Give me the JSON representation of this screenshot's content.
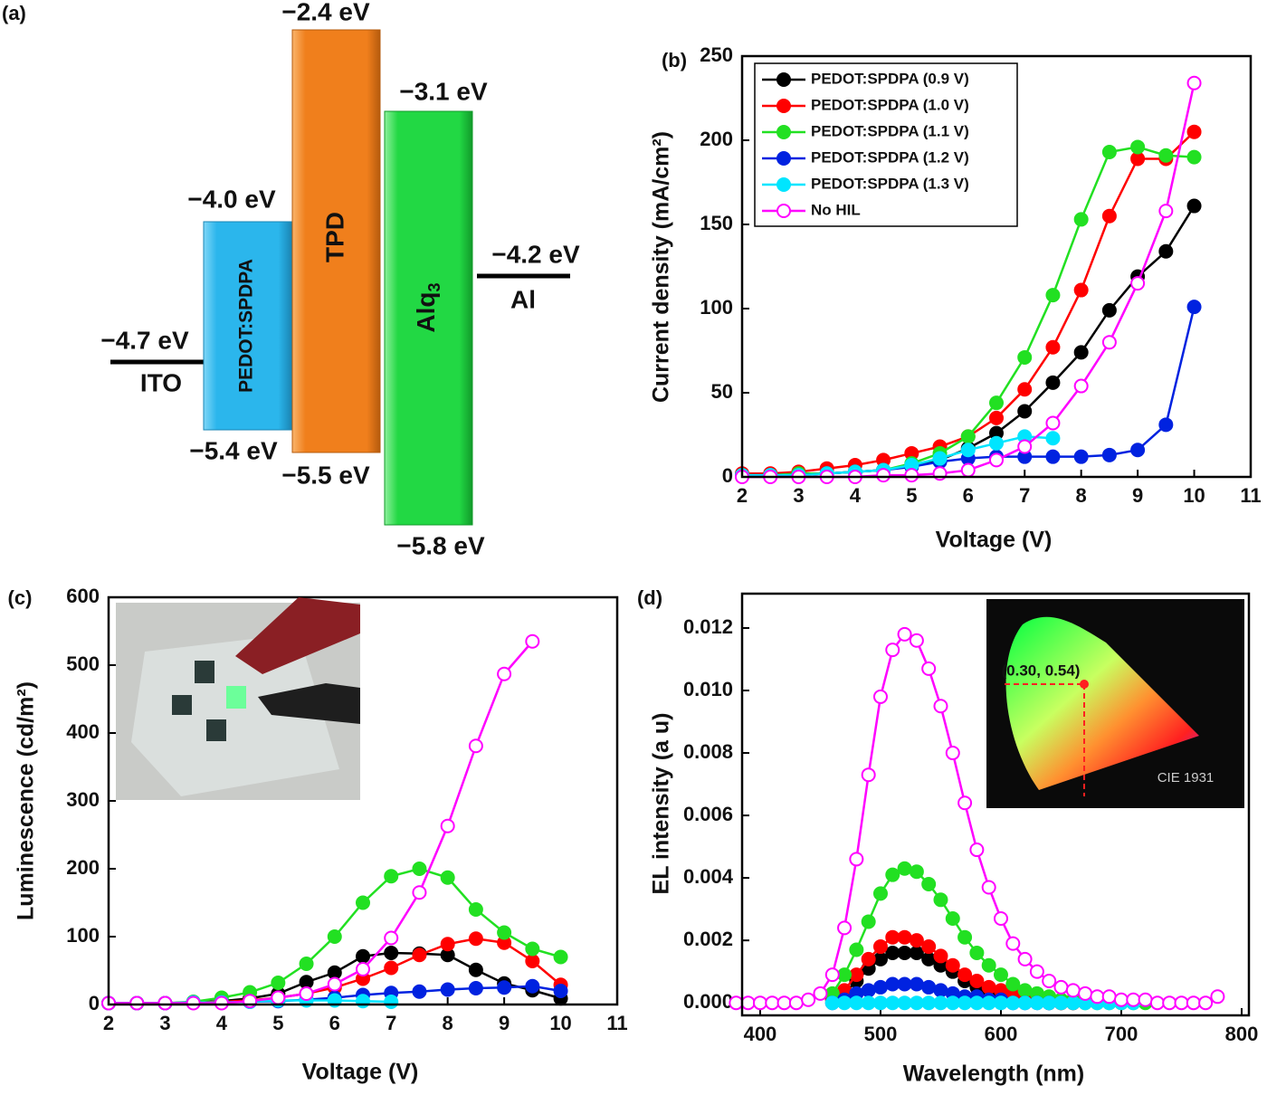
{
  "diagram": {
    "panel_label": "(a)",
    "ito": {
      "name": "ITO",
      "level": "−4.7 eV"
    },
    "pedot": {
      "name": "PEDOT:SPDPA",
      "top": "−4.0 eV",
      "bottom": "−5.4 eV"
    },
    "tpd": {
      "name": "TPD",
      "top": "−2.4 eV",
      "bottom": "−5.5 eV"
    },
    "alq": {
      "name": "Alq",
      "sub": "3",
      "top": "−3.1 eV",
      "bottom": "−5.8 eV"
    },
    "al": {
      "name": "Al",
      "level": "−4.2 eV"
    }
  },
  "chart_data": [
    {
      "type": "line",
      "panel_label": "(b)",
      "x_label": "Voltage (V)",
      "y_label": "Current density (mA/cm²)",
      "xlim": [
        2,
        11
      ],
      "ylim": [
        0,
        250
      ],
      "xticks": [
        2,
        3,
        4,
        5,
        6,
        7,
        8,
        9,
        10,
        11
      ],
      "yticks": [
        0,
        50,
        100,
        150,
        200,
        250
      ],
      "legend": "upper left",
      "x": [
        2,
        2.5,
        3,
        3.5,
        4,
        4.5,
        5,
        5.5,
        6,
        6.5,
        7,
        7.5,
        8,
        8.5,
        9,
        9.5,
        10
      ],
      "series": [
        {
          "name": "PEDOT:SPDPA (0.9 V)",
          "color": "#000000",
          "marker": "filled",
          "values": [
            1,
            1,
            1,
            2,
            3,
            4,
            7,
            10,
            17,
            26,
            39,
            56,
            74,
            99,
            119,
            134,
            161
          ]
        },
        {
          "name": "PEDOT:SPDPA (1.0 V)",
          "color": "#ff0000",
          "marker": "filled",
          "values": [
            2,
            2,
            3,
            5,
            7,
            10,
            14,
            18,
            24,
            35,
            52,
            77,
            111,
            155,
            189,
            189,
            205
          ]
        },
        {
          "name": "PEDOT:SPDPA (1.1 V)",
          "color": "#22e022",
          "marker": "filled",
          "values": [
            1,
            1,
            2,
            2,
            3,
            4,
            8,
            14,
            24,
            44,
            71,
            108,
            153,
            193,
            196,
            191,
            190
          ]
        },
        {
          "name": "PEDOT:SPDPA (1.2 V)",
          "color": "#0022e0",
          "marker": "filled",
          "values": [
            1,
            1,
            1,
            2,
            3,
            4,
            6,
            9,
            11,
            12,
            12,
            12,
            12,
            13,
            16,
            31,
            101
          ]
        },
        {
          "name": "PEDOT:SPDPA (1.3 V)",
          "color": "#00e5ff",
          "marker": "filled",
          "values": [
            1,
            1,
            1,
            2,
            3,
            4,
            7,
            11,
            16,
            20,
            24,
            23,
            null,
            null,
            null,
            null,
            null
          ]
        },
        {
          "name": "No HIL",
          "color": "#ff00ff",
          "marker": "open",
          "values": [
            0,
            0,
            0,
            0,
            0,
            1,
            1,
            2,
            4,
            10,
            18,
            32,
            54,
            80,
            115,
            158,
            234
          ]
        }
      ]
    },
    {
      "type": "line",
      "panel_label": "(c)",
      "x_label": "Voltage (V)",
      "y_label": "Luminescence (cd/m²)",
      "xlim": [
        2,
        11
      ],
      "ylim": [
        0,
        600
      ],
      "xticks": [
        2,
        3,
        4,
        5,
        6,
        7,
        8,
        9,
        10,
        11
      ],
      "yticks": [
        0,
        100,
        200,
        300,
        400,
        500,
        600
      ],
      "x": [
        2,
        2.5,
        3,
        3.5,
        4,
        4.5,
        5,
        5.5,
        6,
        6.5,
        7,
        7.5,
        8,
        8.5,
        9,
        9.5,
        10
      ],
      "series": [
        {
          "color": "#000000",
          "marker": "filled",
          "values": [
            2,
            2,
            2,
            3,
            5,
            9,
            16,
            33,
            47,
            71,
            76,
            75,
            73,
            51,
            31,
            21,
            9
          ]
        },
        {
          "color": "#ff0000",
          "marker": "filled",
          "values": [
            2,
            2,
            2,
            3,
            4,
            6,
            10,
            16,
            25,
            38,
            54,
            73,
            89,
            97,
            91,
            64,
            29
          ]
        },
        {
          "color": "#22e022",
          "marker": "filled",
          "values": [
            2,
            2,
            2,
            4,
            10,
            18,
            32,
            60,
            100,
            150,
            189,
            200,
            187,
            140,
            106,
            82,
            70
          ]
        },
        {
          "color": "#0022e0",
          "marker": "filled",
          "values": [
            2,
            2,
            2,
            3,
            3,
            4,
            5,
            7,
            10,
            14,
            17,
            19,
            22,
            24,
            25,
            27,
            20
          ]
        },
        {
          "color": "#00e5ff",
          "marker": "filled",
          "values": [
            2,
            2,
            2,
            3,
            3,
            4,
            6,
            6,
            6,
            5,
            4,
            null,
            null,
            null,
            null,
            null,
            null
          ]
        },
        {
          "color": "#ff00ff",
          "marker": "open",
          "values": [
            2,
            2,
            2,
            2,
            2,
            5,
            10,
            16,
            30,
            52,
            98,
            165,
            263,
            381,
            487,
            535,
            null
          ]
        }
      ]
    },
    {
      "type": "line",
      "panel_label": "(d)",
      "x_label": "Wavelength (nm)",
      "y_label": "EL intensity (a u)",
      "annotations": [
        "(0.30, 0.54)",
        "CIE 1931"
      ],
      "xlim": [
        385,
        806
      ],
      "ylim": [
        -0.0004,
        0.0131
      ],
      "xticks": [
        400,
        500,
        600,
        700,
        800
      ],
      "yticks": [
        {
          "value": 0,
          "label": "0.000"
        },
        {
          "value": 0.002,
          "label": "0.002"
        },
        {
          "value": 0.004,
          "label": "0.004"
        },
        {
          "value": 0.006,
          "label": "0.006"
        },
        {
          "value": 0.008,
          "label": "0.008"
        },
        {
          "value": 0.01,
          "label": "0.010"
        },
        {
          "value": 0.012,
          "label": "0.012"
        }
      ],
      "x": [
        380,
        390,
        400,
        410,
        420,
        430,
        440,
        450,
        460,
        470,
        480,
        490,
        500,
        510,
        520,
        530,
        540,
        550,
        560,
        570,
        580,
        590,
        600,
        610,
        620,
        630,
        640,
        650,
        660,
        670,
        680,
        690,
        700,
        710,
        720,
        730,
        740,
        750,
        760,
        770,
        780
      ],
      "series": [
        {
          "color": "#000000",
          "marker": "filled",
          "values": [
            null,
            null,
            null,
            null,
            null,
            null,
            null,
            null,
            0.0001,
            0.0003,
            0.0007,
            0.0011,
            0.0014,
            0.0016,
            0.0016,
            0.0016,
            0.0014,
            0.0012,
            0.001,
            0.0007,
            0.0005,
            0.0004,
            0.0003,
            0.0002,
            0.0001,
            0.0001,
            0,
            0,
            0,
            null,
            null,
            null,
            null,
            null,
            null,
            null,
            null,
            null,
            null,
            null,
            null
          ]
        },
        {
          "color": "#ff0000",
          "marker": "filled",
          "values": [
            null,
            null,
            null,
            null,
            null,
            null,
            null,
            null,
            0.0001,
            0.0004,
            0.0009,
            0.0014,
            0.0018,
            0.0021,
            0.0021,
            0.002,
            0.0018,
            0.0015,
            0.0012,
            0.0009,
            0.0007,
            0.0005,
            0.0004,
            0.0003,
            0.0002,
            0.0001,
            0.0001,
            0,
            0,
            null,
            null,
            null,
            null,
            null,
            null,
            null,
            null,
            null,
            null,
            null,
            null
          ]
        },
        {
          "color": "#22e022",
          "marker": "filled",
          "values": [
            null,
            null,
            null,
            null,
            null,
            null,
            null,
            null,
            0.0003,
            0.0009,
            0.0017,
            0.0026,
            0.0035,
            0.0041,
            0.0043,
            0.0042,
            0.0038,
            0.0033,
            0.0027,
            0.0021,
            0.0016,
            0.0012,
            0.0009,
            0.0006,
            0.0004,
            0.0003,
            0.0002,
            0.0001,
            0.0001,
            0,
            0,
            0,
            0,
            0,
            0,
            null,
            null,
            null,
            null,
            null,
            null
          ]
        },
        {
          "color": "#0022e0",
          "marker": "filled",
          "values": [
            null,
            null,
            null,
            null,
            null,
            null,
            null,
            null,
            0,
            0.0001,
            0.0003,
            0.0004,
            0.0005,
            0.0006,
            0.0006,
            0.0006,
            0.0005,
            0.0004,
            0.0003,
            0.0002,
            0.0002,
            0.0001,
            0.0001,
            0,
            0,
            0,
            0,
            null,
            null,
            null,
            null,
            null,
            null,
            null,
            null,
            null,
            null,
            null,
            null,
            null,
            null
          ]
        },
        {
          "color": "#00e5ff",
          "marker": "filled",
          "values": [
            null,
            null,
            null,
            null,
            null,
            null,
            null,
            null,
            0,
            0,
            0,
            0,
            0,
            0,
            0,
            0,
            0,
            0,
            0,
            0,
            0,
            0,
            0,
            0,
            0,
            0,
            0,
            0,
            0,
            0,
            0,
            0,
            0,
            0,
            null,
            null,
            null,
            null,
            null,
            null,
            null
          ]
        },
        {
          "color": "#ff00ff",
          "marker": "open",
          "values": [
            0,
            0,
            0,
            0,
            0,
            0,
            0.0001,
            0.0003,
            0.0009,
            0.0024,
            0.0046,
            0.0073,
            0.0098,
            0.0113,
            0.0118,
            0.0116,
            0.0107,
            0.0095,
            0.008,
            0.0064,
            0.0049,
            0.0037,
            0.0027,
            0.0019,
            0.0014,
            0.001,
            0.0007,
            0.0005,
            0.0004,
            0.0003,
            0.0002,
            0.0002,
            0.0001,
            0.0001,
            0.0001,
            0,
            0,
            0,
            0,
            0,
            0.0002
          ]
        }
      ]
    }
  ]
}
